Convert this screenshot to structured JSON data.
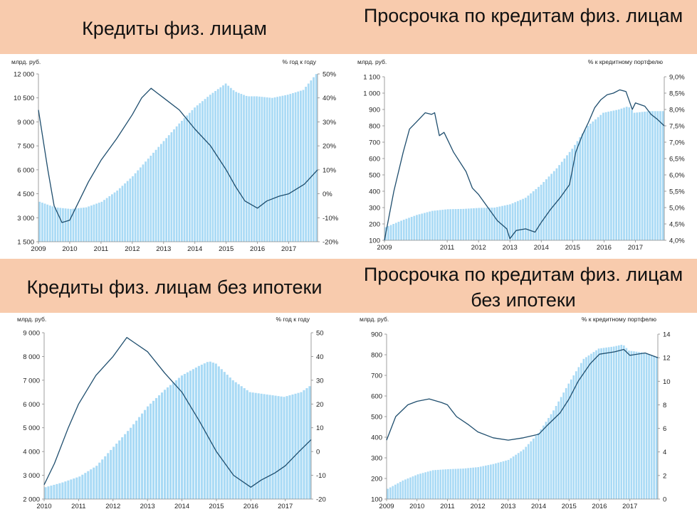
{
  "titles": {
    "top_left": "Кредиты физ. лицам",
    "top_right": "Просрочка по кредитам физ. лицам",
    "bottom_left": "Кредиты физ. лицам без ипотеки",
    "bottom_right": "Просрочка по кредитам физ. лицам без ипотеки"
  },
  "colors": {
    "band": "#f8cbad",
    "bars": "#a9daf5",
    "line": "#1f4e6e"
  },
  "chart_data": [
    {
      "id": "loans",
      "type": "bar",
      "left_unit": "млрд. руб.",
      "right_unit": "% год к году",
      "ylim_left": [
        1500,
        12000
      ],
      "ylim_right": [
        -20,
        50
      ],
      "left_ticks": [
        "1 500",
        "3 000",
        "4 500",
        "6 000",
        "7 500",
        "9 000",
        "10 500",
        "12 000"
      ],
      "right_ticks": [
        "-20%",
        "-10%",
        "0%",
        "10%",
        "20%",
        "30%",
        "40%",
        "50%"
      ],
      "x_ticks": [
        "2009",
        "2010",
        "2011",
        "2012",
        "2013",
        "2014",
        "2015",
        "2016",
        "2017"
      ],
      "x_start": 2009.0,
      "x_end": 2017.92,
      "series": [
        {
          "kind": "bar",
          "axis": "left",
          "points": [
            [
              2009.0,
              4000
            ],
            [
              2009.5,
              3650
            ],
            [
              2010.0,
              3550
            ],
            [
              2010.5,
              3650
            ],
            [
              2011.0,
              4000
            ],
            [
              2011.5,
              4700
            ],
            [
              2012.0,
              5600
            ],
            [
              2012.5,
              6700
            ],
            [
              2013.0,
              7800
            ],
            [
              2013.5,
              8900
            ],
            [
              2014.0,
              9900
            ],
            [
              2014.5,
              10700
            ],
            [
              2015.0,
              11400
            ],
            [
              2015.3,
              10900
            ],
            [
              2015.7,
              10600
            ],
            [
              2016.0,
              10600
            ],
            [
              2016.5,
              10500
            ],
            [
              2017.0,
              10700
            ],
            [
              2017.5,
              11000
            ],
            [
              2017.92,
              12000
            ]
          ]
        },
        {
          "kind": "line",
          "axis": "right",
          "points": [
            [
              2009.0,
              35
            ],
            [
              2009.3,
              10
            ],
            [
              2009.5,
              -5
            ],
            [
              2009.75,
              -12
            ],
            [
              2010.0,
              -11
            ],
            [
              2010.3,
              -3
            ],
            [
              2010.6,
              5
            ],
            [
              2011.0,
              14
            ],
            [
              2011.5,
              23
            ],
            [
              2012.0,
              33
            ],
            [
              2012.3,
              40
            ],
            [
              2012.6,
              44
            ],
            [
              2012.8,
              42
            ],
            [
              2013.0,
              40
            ],
            [
              2013.5,
              35
            ],
            [
              2014.0,
              27
            ],
            [
              2014.5,
              20
            ],
            [
              2015.0,
              10
            ],
            [
              2015.3,
              3
            ],
            [
              2015.6,
              -3
            ],
            [
              2016.0,
              -6
            ],
            [
              2016.3,
              -3
            ],
            [
              2016.7,
              -1
            ],
            [
              2017.0,
              0
            ],
            [
              2017.5,
              4
            ],
            [
              2017.92,
              10
            ]
          ]
        }
      ]
    },
    {
      "id": "overdue",
      "type": "bar",
      "left_unit": "млрд. руб.",
      "right_unit": "% к кредитному портфелю",
      "ylim_left": [
        100,
        1100
      ],
      "ylim_right": [
        4.0,
        9.0
      ],
      "left_ticks": [
        "100",
        "200",
        "300",
        "400",
        "500",
        "600",
        "700",
        "800",
        "900",
        "1 000",
        "1 100"
      ],
      "right_ticks": [
        "4,0%",
        "4,5%",
        "5,0%",
        "5,5%",
        "6,0%",
        "6,5%",
        "7,0%",
        "7,5%",
        "8,0%",
        "8,5%",
        "9,0%"
      ],
      "x_ticks": [
        "2009",
        "2011",
        "2012",
        "2013",
        "2014",
        "2015",
        "2016",
        "2017"
      ],
      "x_start": 2009.0,
      "x_end": 2017.92,
      "series": [
        {
          "kind": "bar",
          "axis": "left",
          "points": [
            [
              2009.0,
              180
            ],
            [
              2009.5,
              220
            ],
            [
              2010.0,
              255
            ],
            [
              2010.5,
              280
            ],
            [
              2011.0,
              290
            ],
            [
              2011.5,
              292
            ],
            [
              2012.0,
              298
            ],
            [
              2012.5,
              300
            ],
            [
              2013.0,
              320
            ],
            [
              2013.5,
              360
            ],
            [
              2014.0,
              440
            ],
            [
              2014.5,
              540
            ],
            [
              2015.0,
              660
            ],
            [
              2015.5,
              800
            ],
            [
              2016.0,
              880
            ],
            [
              2016.5,
              900
            ],
            [
              2016.8,
              920
            ],
            [
              2017.0,
              880
            ],
            [
              2017.5,
              890
            ],
            [
              2017.92,
              890
            ]
          ]
        },
        {
          "kind": "line",
          "axis": "right",
          "points": [
            [
              2009.0,
              4.0
            ],
            [
              2009.3,
              5.5
            ],
            [
              2009.6,
              6.7
            ],
            [
              2009.8,
              7.4
            ],
            [
              2010.0,
              7.6
            ],
            [
              2010.3,
              7.9
            ],
            [
              2010.5,
              7.85
            ],
            [
              2010.6,
              7.9
            ],
            [
              2010.75,
              7.2
            ],
            [
              2010.9,
              7.3
            ],
            [
              2011.2,
              6.7
            ],
            [
              2011.6,
              6.1
            ],
            [
              2011.8,
              5.6
            ],
            [
              2012.0,
              5.4
            ],
            [
              2012.3,
              5.0
            ],
            [
              2012.6,
              4.6
            ],
            [
              2012.9,
              4.35
            ],
            [
              2013.0,
              4.05
            ],
            [
              2013.2,
              4.3
            ],
            [
              2013.5,
              4.35
            ],
            [
              2013.8,
              4.25
            ],
            [
              2014.0,
              4.55
            ],
            [
              2014.3,
              4.95
            ],
            [
              2014.6,
              5.3
            ],
            [
              2014.9,
              5.7
            ],
            [
              2015.1,
              6.7
            ],
            [
              2015.3,
              7.2
            ],
            [
              2015.5,
              7.6
            ],
            [
              2015.7,
              8.05
            ],
            [
              2015.9,
              8.3
            ],
            [
              2016.1,
              8.45
            ],
            [
              2016.3,
              8.5
            ],
            [
              2016.5,
              8.6
            ],
            [
              2016.7,
              8.55
            ],
            [
              2016.9,
              8.0
            ],
            [
              2017.0,
              8.2
            ],
            [
              2017.3,
              8.1
            ],
            [
              2017.5,
              7.85
            ],
            [
              2017.7,
              7.7
            ],
            [
              2017.92,
              7.5
            ]
          ]
        }
      ]
    },
    {
      "id": "loans_no_mortgage",
      "type": "bar",
      "left_unit": "млрд. руб.",
      "right_unit": "% год к году",
      "ylim_left": [
        2000,
        9000
      ],
      "ylim_right": [
        -20,
        50
      ],
      "left_ticks": [
        "2 000",
        "3 000",
        "4 000",
        "5 000",
        "6 000",
        "7 000",
        "8 000",
        "9 000"
      ],
      "right_ticks": [
        "-20",
        "-10",
        "0",
        "10",
        "20",
        "30",
        "40",
        "50"
      ],
      "x_ticks": [
        "2010",
        "2011",
        "2012",
        "2013",
        "2014",
        "2015",
        "2016",
        "2017"
      ],
      "x_start": 2010.0,
      "x_end": 2017.75,
      "series": [
        {
          "kind": "bar",
          "axis": "left",
          "points": [
            [
              2010.0,
              2500
            ],
            [
              2010.5,
              2700
            ],
            [
              2011.0,
              2950
            ],
            [
              2011.5,
              3400
            ],
            [
              2012.0,
              4200
            ],
            [
              2012.5,
              5000
            ],
            [
              2013.0,
              5900
            ],
            [
              2013.5,
              6600
            ],
            [
              2014.0,
              7200
            ],
            [
              2014.5,
              7600
            ],
            [
              2014.8,
              7800
            ],
            [
              2015.0,
              7700
            ],
            [
              2015.5,
              7000
            ],
            [
              2016.0,
              6500
            ],
            [
              2016.5,
              6400
            ],
            [
              2017.0,
              6300
            ],
            [
              2017.5,
              6500
            ],
            [
              2017.75,
              6750
            ]
          ]
        },
        {
          "kind": "line",
          "axis": "right",
          "points": [
            [
              2010.0,
              -14
            ],
            [
              2010.3,
              -5
            ],
            [
              2010.7,
              10
            ],
            [
              2011.0,
              20
            ],
            [
              2011.5,
              32
            ],
            [
              2012.0,
              40
            ],
            [
              2012.4,
              48
            ],
            [
              2012.6,
              46
            ],
            [
              2013.0,
              42
            ],
            [
              2013.5,
              33
            ],
            [
              2014.0,
              25
            ],
            [
              2014.5,
              13
            ],
            [
              2015.0,
              0
            ],
            [
              2015.5,
              -10
            ],
            [
              2016.0,
              -15
            ],
            [
              2016.3,
              -12
            ],
            [
              2016.7,
              -9
            ],
            [
              2017.0,
              -6
            ],
            [
              2017.4,
              0
            ],
            [
              2017.75,
              5
            ]
          ]
        }
      ]
    },
    {
      "id": "overdue_no_mortgage",
      "type": "bar",
      "left_unit": "млрд. руб.",
      "right_unit": "% к кредитному портфелю",
      "ylim_left": [
        100,
        900
      ],
      "ylim_right": [
        0,
        14
      ],
      "left_ticks": [
        "100",
        "200",
        "300",
        "400",
        "500",
        "600",
        "700",
        "800",
        "900"
      ],
      "right_ticks": [
        "0",
        "2",
        "4",
        "6",
        "8",
        "10",
        "12",
        "14"
      ],
      "x_ticks": [
        "2009",
        "2010",
        "2011",
        "2012",
        "2013",
        "2014",
        "2015",
        "2016",
        "2017"
      ],
      "x_start": 2009.0,
      "x_end": 2017.92,
      "series": [
        {
          "kind": "bar",
          "axis": "left",
          "points": [
            [
              2009.0,
              150
            ],
            [
              2009.5,
              190
            ],
            [
              2010.0,
              220
            ],
            [
              2010.5,
              240
            ],
            [
              2011.0,
              245
            ],
            [
              2011.5,
              248
            ],
            [
              2012.0,
              255
            ],
            [
              2012.5,
              270
            ],
            [
              2013.0,
              290
            ],
            [
              2013.5,
              340
            ],
            [
              2014.0,
              420
            ],
            [
              2014.5,
              530
            ],
            [
              2015.0,
              660
            ],
            [
              2015.5,
              780
            ],
            [
              2016.0,
              830
            ],
            [
              2016.5,
              840
            ],
            [
              2016.8,
              850
            ],
            [
              2017.0,
              820
            ],
            [
              2017.5,
              810
            ],
            [
              2017.92,
              790
            ]
          ]
        },
        {
          "kind": "line",
          "axis": "right",
          "points": [
            [
              2009.0,
              5.0
            ],
            [
              2009.3,
              7.0
            ],
            [
              2009.7,
              8.0
            ],
            [
              2010.0,
              8.3
            ],
            [
              2010.4,
              8.5
            ],
            [
              2010.8,
              8.2
            ],
            [
              2011.0,
              8.0
            ],
            [
              2011.3,
              7.0
            ],
            [
              2011.7,
              6.3
            ],
            [
              2012.0,
              5.7
            ],
            [
              2012.5,
              5.2
            ],
            [
              2013.0,
              5.0
            ],
            [
              2013.5,
              5.2
            ],
            [
              2014.0,
              5.5
            ],
            [
              2014.3,
              6.3
            ],
            [
              2014.7,
              7.3
            ],
            [
              2015.0,
              8.5
            ],
            [
              2015.3,
              10.0
            ],
            [
              2015.7,
              11.5
            ],
            [
              2016.0,
              12.3
            ],
            [
              2016.5,
              12.5
            ],
            [
              2016.8,
              12.7
            ],
            [
              2017.0,
              12.2
            ],
            [
              2017.5,
              12.4
            ],
            [
              2017.92,
              12.0
            ]
          ]
        }
      ]
    }
  ]
}
